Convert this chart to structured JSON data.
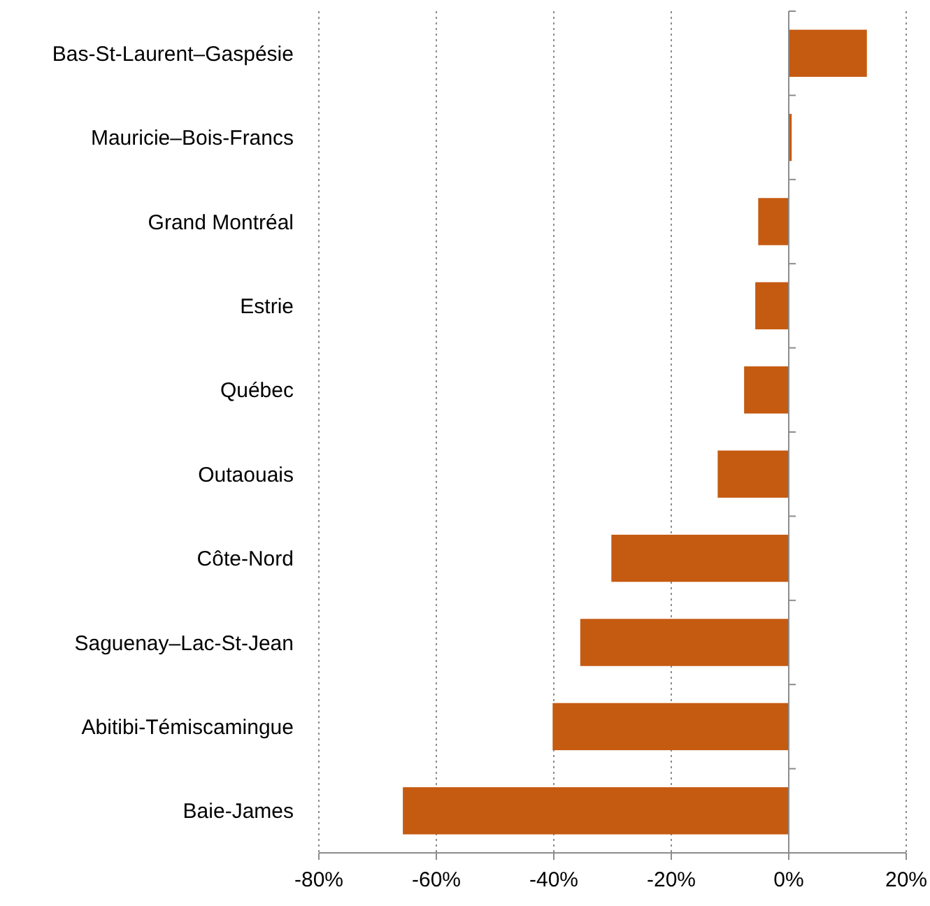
{
  "chart_data": {
    "type": "bar",
    "orientation": "horizontal",
    "categories": [
      "Bas-St-Laurent–Gaspésie",
      "Mauricie–Bois-Francs",
      "Grand Montréal",
      "Estrie",
      "Québec",
      "Outaouais",
      "Côte-Nord",
      "Saguenay–Lac-St-Jean",
      "Abitibi-Témiscamingue",
      "Baie-James"
    ],
    "values": [
      13.3,
      0.5,
      -5.2,
      -5.7,
      -7.6,
      -12.1,
      -30.2,
      -35.5,
      -40.2,
      -65.7
    ],
    "color": "#c55a11",
    "xlim": [
      -80,
      20
    ],
    "xticks": [
      {
        "value": -80,
        "label": "-80%"
      },
      {
        "value": -60,
        "label": "-60%"
      },
      {
        "value": -40,
        "label": "-40%"
      },
      {
        "value": -20,
        "label": "-20%"
      },
      {
        "value": 0,
        "label": "0%"
      },
      {
        "value": 20,
        "label": "20%"
      }
    ],
    "grid": "x"
  }
}
